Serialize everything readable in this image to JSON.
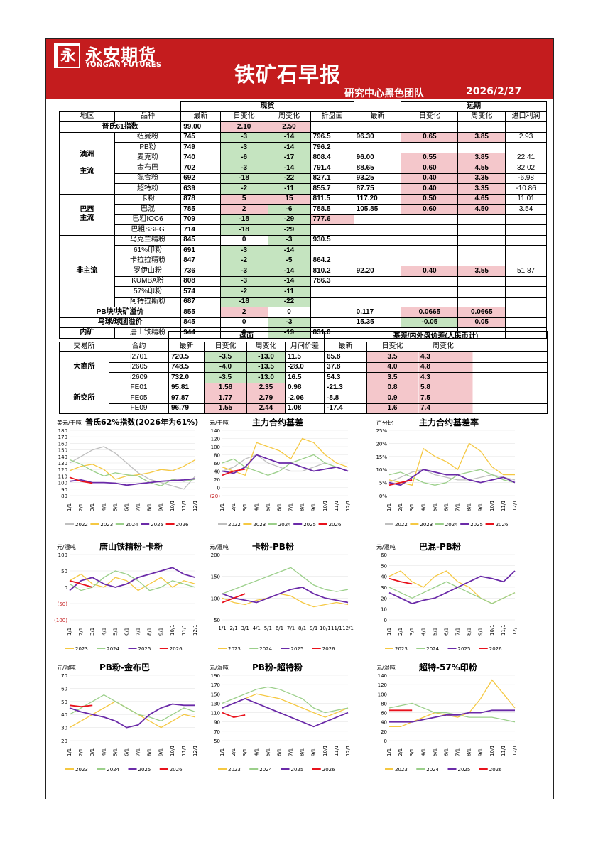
{
  "header": {
    "logo_glyph": "永",
    "logo_cn": "永安期货",
    "logo_en": "YONGAN FUTURES",
    "title": "铁矿石早报",
    "team": "研究中心黑色团队",
    "date": "2026/2/27"
  },
  "spot": {
    "section_spot": "现货",
    "section_forward": "远期",
    "headers": [
      "地区",
      "品种",
      "最新",
      "日变化",
      "周变化",
      "折盘面",
      "最新",
      "日变化",
      "周变化",
      "进口利润"
    ],
    "index_label": "普氏61指数",
    "index": [
      "99.00",
      "2.10",
      "2.50"
    ],
    "groups": [
      {
        "region": "澳洲\n\n主流",
        "rows": [
          [
            "纽曼粉",
            "745",
            "-3",
            "-14",
            "796.5",
            "96.30",
            "0.65",
            "3.85",
            "2.93"
          ],
          [
            "PB粉",
            "749",
            "-3",
            "-14",
            "796.2",
            "",
            "",
            "",
            ""
          ],
          [
            "麦克粉",
            "740",
            "-6",
            "-17",
            "808.4",
            "96.00",
            "0.55",
            "3.85",
            "22.41"
          ],
          [
            "金布巴",
            "702",
            "-3",
            "-14",
            "791.4",
            "88.65",
            "0.60",
            "4.55",
            "32.02"
          ],
          [
            "混合粉",
            "692",
            "-18",
            "-22",
            "827.1",
            "93.25",
            "0.40",
            "3.35",
            "-6.98"
          ],
          [
            "超特粉",
            "639",
            "-2",
            "-11",
            "855.7",
            "87.75",
            "0.40",
            "3.35",
            "-10.86"
          ]
        ]
      },
      {
        "region": "巴西\n主流",
        "rows": [
          [
            "卡粉",
            "878",
            "5",
            "15",
            "811.5",
            "117.20",
            "0.50",
            "4.65",
            "11.01"
          ],
          [
            "巴混",
            "785",
            "2",
            "-6",
            "788.5",
            "105.85",
            "0.60",
            "4.50",
            "3.54"
          ],
          [
            "巴粗IOC6",
            "709",
            "-18",
            "-29",
            "777.6",
            "",
            "",
            "",
            ""
          ],
          [
            "巴粗SSFG",
            "714",
            "-18",
            "-29",
            "",
            "",
            "",
            "",
            ""
          ]
        ]
      },
      {
        "region": "非主流",
        "rows": [
          [
            "乌克兰精粉",
            "845",
            "0",
            "-3",
            "930.5",
            "",
            "",
            "",
            ""
          ],
          [
            "61%印粉",
            "691",
            "-3",
            "-14",
            "",
            "",
            "",
            "",
            ""
          ],
          [
            "卡拉拉精粉",
            "847",
            "-2",
            "-5",
            "864.2",
            "",
            "",
            "",
            ""
          ],
          [
            "罗伊山粉",
            "736",
            "-3",
            "-14",
            "810.2",
            "92.20",
            "0.40",
            "3.55",
            "51.87"
          ],
          [
            "KUMBA粉",
            "808",
            "-3",
            "-14",
            "786.3",
            "",
            "",
            "",
            ""
          ],
          [
            "57%印粉",
            "574",
            "-2",
            "-11",
            "",
            "",
            "",
            "",
            ""
          ],
          [
            "阿特拉斯粉",
            "687",
            "-18",
            "-22",
            "",
            "",
            "",
            "",
            ""
          ]
        ]
      }
    ],
    "premium": [
      [
        "PB块/块矿溢价",
        "855",
        "2",
        "0",
        "",
        "0.117",
        "0.0665",
        "0.0665",
        ""
      ],
      [
        "乌球/球团溢价",
        "845",
        "0",
        "-3",
        "",
        "15.35",
        "-0.05",
        "0.05",
        ""
      ]
    ],
    "domestic": [
      "内矿",
      "唐山铁精粉",
      "944",
      "0",
      "-19",
      "831.0"
    ]
  },
  "futures": {
    "section_disk": "盘面",
    "section_basis": "基差/内外盘价差(人民币计)",
    "headers": [
      "交易所",
      "合约",
      "最新",
      "日变化",
      "周变化",
      "月间价差",
      "最新",
      "日变化",
      "周变化"
    ],
    "groups": [
      {
        "exchange": "大商所",
        "rows": [
          [
            "i2701",
            "720.5",
            "-3.5",
            "-13.0",
            "11.5",
            "65.8",
            "3.5",
            "4.3"
          ],
          [
            "i2605",
            "748.5",
            "-4.0",
            "-13.5",
            "-28.0",
            "37.8",
            "4.0",
            "4.8"
          ],
          [
            "i2609",
            "732.0",
            "-3.5",
            "-13.0",
            "16.5",
            "54.3",
            "3.5",
            "4.3"
          ]
        ]
      },
      {
        "exchange": "新交所",
        "rows": [
          [
            "FE01",
            "95.81",
            "1.58",
            "2.35",
            "0.98",
            "-21.3",
            "0.8",
            "5.8"
          ],
          [
            "FE05",
            "97.87",
            "1.77",
            "2.79",
            "-2.06",
            "-8.8",
            "0.9",
            "7.5"
          ],
          [
            "FE09",
            "96.79",
            "1.55",
            "2.44",
            "1.08",
            "-17.4",
            "1.6",
            "7.4"
          ]
        ]
      }
    ]
  },
  "colors": {
    "red": "#c41c1e",
    "y2022": "#bfbfbf",
    "y2023": "#f5c842",
    "y2024": "#9bcf8a",
    "y2025": "#6a2aa8",
    "y2026": "#e8121c"
  },
  "chart_data": [
    {
      "type": "line",
      "title": "普氏62%指数(2026年为61%)",
      "ylabel": "美元/干吨",
      "ylim": [
        80,
        180
      ],
      "yticks": [
        "180",
        "170",
        "160",
        "150",
        "140",
        "130",
        "120",
        "110",
        "100",
        "90",
        "80"
      ],
      "xticks": [
        "1/1",
        "2/1",
        "3/1",
        "4/1",
        "5/1",
        "6/1",
        "7/1",
        "8/1",
        "9/1",
        "10/1",
        "11/1",
        "12/1"
      ],
      "series": [
        {
          "name": "2022",
          "values": [
            130,
            140,
            150,
            155,
            145,
            130,
            115,
            105,
            100,
            95,
            90,
            110
          ]
        },
        {
          "name": "2023",
          "values": [
            118,
            125,
            128,
            120,
            105,
            110,
            112,
            115,
            120,
            118,
            125,
            135
          ]
        },
        {
          "name": "2024",
          "values": [
            135,
            128,
            118,
            110,
            115,
            112,
            110,
            100,
            95,
            105,
            102,
            105
          ]
        },
        {
          "name": "2025",
          "values": [
            102,
            104,
            100,
            100,
            99,
            96,
            98,
            100,
            102,
            103,
            104,
            106
          ]
        },
        {
          "name": "2026",
          "values": [
            108,
            102,
            99
          ]
        }
      ]
    },
    {
      "type": "line",
      "title": "主力合约基差",
      "ylabel": "元/干吨",
      "ylim": [
        -20,
        140
      ],
      "yticks": [
        "140",
        "120",
        "100",
        "80",
        "60",
        "40",
        "20",
        "0",
        "(20)"
      ],
      "xticks": [
        "1/1",
        "2/1",
        "3/1",
        "4/1",
        "5/1",
        "6/1",
        "7/1",
        "8/1",
        "9/1",
        "10/1",
        "11/1",
        "12/1"
      ],
      "series": [
        {
          "name": "2022",
          "values": [
            40,
            50,
            70,
            80,
            60,
            50,
            40,
            40,
            50,
            60,
            50,
            40
          ]
        },
        {
          "name": "2023",
          "values": [
            50,
            40,
            30,
            110,
            100,
            90,
            70,
            120,
            110,
            80,
            60,
            50
          ]
        },
        {
          "name": "2024",
          "values": [
            60,
            70,
            50,
            40,
            30,
            40,
            60,
            70,
            80,
            60,
            50,
            40
          ]
        },
        {
          "name": "2025",
          "values": [
            40,
            35,
            50,
            80,
            70,
            60,
            60,
            50,
            40,
            45,
            50,
            40
          ]
        },
        {
          "name": "2026",
          "values": [
            30,
            40,
            45
          ]
        }
      ]
    },
    {
      "type": "line",
      "title": "主力合约基差率",
      "ylabel": "百分比",
      "ylim": [
        0,
        25
      ],
      "yticks": [
        "25%",
        "20%",
        "15%",
        "10%",
        "5%",
        "0%"
      ],
      "xticks": [
        "1/1",
        "2/1",
        "3/1",
        "4/1",
        "5/1",
        "6/1",
        "7/1",
        "8/1",
        "9/1",
        "10/1",
        "11/1",
        "12/1"
      ],
      "series": [
        {
          "name": "2022",
          "values": [
            5,
            7,
            9,
            10,
            8,
            7,
            6,
            6,
            7,
            8,
            7,
            6
          ]
        },
        {
          "name": "2023",
          "values": [
            6,
            5,
            4,
            18,
            15,
            13,
            10,
            20,
            17,
            11,
            8,
            8
          ]
        },
        {
          "name": "2024",
          "values": [
            8,
            9,
            7,
            5,
            4,
            5,
            8,
            9,
            10,
            8,
            6,
            5
          ]
        },
        {
          "name": "2025",
          "values": [
            5,
            4,
            7,
            10,
            9,
            8,
            8,
            6,
            5,
            6,
            7,
            5
          ]
        },
        {
          "name": "2026",
          "values": [
            4,
            5,
            6
          ]
        }
      ]
    },
    {
      "type": "line",
      "title": "唐山铁精粉-卡粉",
      "ylabel": "元/湿吨",
      "ylim": [
        -100,
        100
      ],
      "yticks": [
        "100",
        "50",
        "0",
        "(50)",
        "(100)"
      ],
      "xticks": [
        "1/1",
        "2/1",
        "3/1",
        "4/1",
        "5/1",
        "6/1",
        "7/1",
        "8/1",
        "9/1",
        "10/1",
        "11/1",
        "12/1"
      ],
      "series": [
        {
          "name": "2023",
          "values": [
            20,
            40,
            10,
            0,
            30,
            20,
            -10,
            10,
            30,
            0,
            20,
            10
          ]
        },
        {
          "name": "2024",
          "values": [
            10,
            -10,
            0,
            30,
            50,
            40,
            20,
            -10,
            0,
            20,
            10,
            0
          ]
        },
        {
          "name": "2025",
          "values": [
            -10,
            20,
            30,
            10,
            0,
            10,
            30,
            40,
            50,
            60,
            40,
            30
          ]
        },
        {
          "name": "2026",
          "values": [
            20,
            10,
            0
          ]
        }
      ]
    },
    {
      "type": "line",
      "title": "卡粉-PB粉",
      "ylabel": "元/湿吨",
      "ylim": [
        50,
        200
      ],
      "yticks": [
        "200",
        "150",
        "100",
        "50"
      ],
      "xticks": [
        "1/1",
        "2/1",
        "3/1",
        "4/1",
        "5/1",
        "6/1",
        "7/1",
        "8/1",
        "9/1",
        "10/1",
        "11/1",
        "12/1"
      ],
      "series": [
        {
          "name": "2023",
          "values": [
            100,
            90,
            85,
            95,
            100,
            110,
            105,
            90,
            80,
            85,
            90,
            85
          ]
        },
        {
          "name": "2024",
          "values": [
            110,
            120,
            130,
            140,
            150,
            160,
            170,
            150,
            130,
            120,
            115,
            120
          ]
        },
        {
          "name": "2025",
          "values": [
            110,
            100,
            95,
            90,
            100,
            110,
            120,
            125,
            110,
            100,
            95,
            90
          ]
        },
        {
          "name": "2026",
          "values": [
            90,
            100,
            110
          ]
        }
      ]
    },
    {
      "type": "line",
      "title": "巴混-PB粉",
      "ylabel": "元/湿吨",
      "ylim": [
        0,
        60
      ],
      "yticks": [
        "60",
        "50",
        "40",
        "30",
        "20",
        "10",
        "0"
      ],
      "xticks": [
        "1/1",
        "2/1",
        "3/1",
        "4/1",
        "5/1",
        "6/1",
        "7/1",
        "8/1",
        "9/1",
        "10/1",
        "11/1",
        "12/1"
      ],
      "series": [
        {
          "name": "2023",
          "values": [
            40,
            45,
            35,
            30,
            40,
            45,
            35,
            30,
            20,
            15,
            20,
            25
          ]
        },
        {
          "name": "2024",
          "values": [
            30,
            25,
            20,
            25,
            30,
            35,
            30,
            25,
            20,
            15,
            20,
            25
          ]
        },
        {
          "name": "2025",
          "values": [
            25,
            20,
            15,
            18,
            20,
            25,
            30,
            35,
            40,
            38,
            35,
            45
          ]
        },
        {
          "name": "2026",
          "values": [
            38,
            35,
            33
          ]
        }
      ]
    },
    {
      "type": "line",
      "title": "PB粉-金布巴",
      "ylabel": "元/湿吨",
      "ylim": [
        20,
        70
      ],
      "yticks": [
        "70",
        "60",
        "50",
        "40",
        "30",
        "20"
      ],
      "xticks": [
        "1/1",
        "2/1",
        "3/1",
        "4/1",
        "5/1",
        "6/1",
        "7/1",
        "8/1",
        "9/1",
        "10/1",
        "11/1",
        "12/1"
      ],
      "series": [
        {
          "name": "2023",
          "values": [
            30,
            35,
            40,
            45,
            50,
            45,
            40,
            35,
            30,
            35,
            40,
            38
          ]
        },
        {
          "name": "2024",
          "values": [
            40,
            45,
            50,
            55,
            50,
            45,
            40,
            38,
            35,
            40,
            45,
            42
          ]
        },
        {
          "name": "2025",
          "values": [
            45,
            42,
            40,
            38,
            35,
            30,
            32,
            40,
            45,
            48,
            47,
            47
          ]
        },
        {
          "name": "2026",
          "values": [
            47,
            46,
            47
          ]
        }
      ]
    },
    {
      "type": "line",
      "title": "PB粉-超特粉",
      "ylabel": "元/湿吨",
      "ylim": [
        50,
        190
      ],
      "yticks": [
        "190",
        "170",
        "150",
        "130",
        "110",
        "90",
        "70",
        "50"
      ],
      "xticks": [
        "1/1",
        "2/1",
        "3/1",
        "4/1",
        "5/1",
        "6/1",
        "7/1",
        "8/1",
        "9/1",
        "10/1",
        "11/1",
        "12/1"
      ],
      "series": [
        {
          "name": "2023",
          "values": [
            120,
            130,
            140,
            150,
            145,
            140,
            130,
            120,
            110,
            100,
            110,
            120
          ]
        },
        {
          "name": "2024",
          "values": [
            130,
            140,
            150,
            160,
            165,
            160,
            150,
            140,
            120,
            110,
            115,
            120
          ]
        },
        {
          "name": "2025",
          "values": [
            120,
            130,
            140,
            130,
            120,
            110,
            100,
            90,
            80,
            90,
            100,
            110
          ]
        },
        {
          "name": "2026",
          "values": [
            110,
            100,
            105
          ]
        }
      ]
    },
    {
      "type": "line",
      "title": "超特-57%印粉",
      "ylabel": "元/湿吨",
      "ylim": [
        0,
        140
      ],
      "yticks": [
        "140",
        "120",
        "100",
        "80",
        "60",
        "40",
        "20",
        "0"
      ],
      "xticks": [
        "1/1",
        "2/1",
        "3/1",
        "4/1",
        "5/1",
        "6/1",
        "7/1",
        "8/1",
        "9/1",
        "10/1",
        "11/1",
        "12/1"
      ],
      "series": [
        {
          "name": "2023",
          "values": [
            30,
            30,
            40,
            50,
            60,
            55,
            50,
            60,
            90,
            130,
            100,
            70
          ]
        },
        {
          "name": "2024",
          "values": [
            70,
            75,
            80,
            70,
            60,
            60,
            55,
            50,
            50,
            50,
            45,
            40
          ]
        },
        {
          "name": "2025",
          "values": [
            40,
            40,
            40,
            45,
            50,
            55,
            55,
            60,
            60,
            65,
            65,
            65
          ]
        },
        {
          "name": "2026",
          "values": [
            65,
            65,
            65
          ]
        }
      ]
    }
  ]
}
